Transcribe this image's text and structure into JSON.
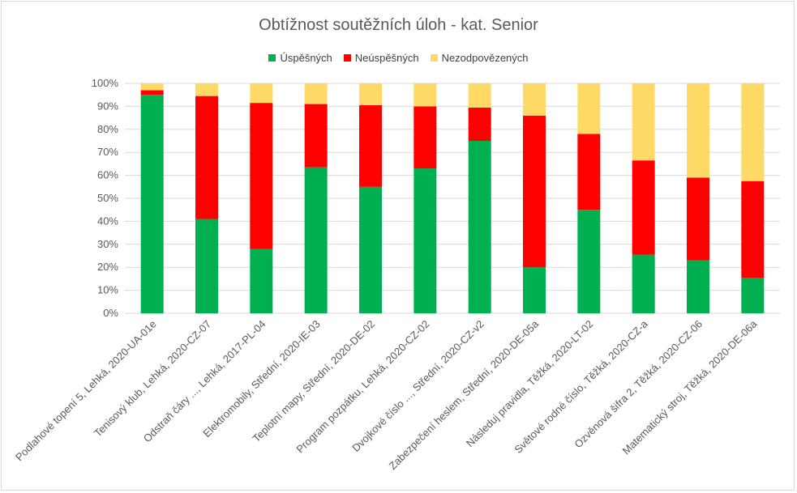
{
  "chart_data": {
    "type": "bar",
    "stacked": true,
    "percent": true,
    "title": "Obtížnost soutěžních úloh - kat. Senior",
    "ylim": [
      0,
      100
    ],
    "yticks": [
      "0%",
      "10%",
      "20%",
      "30%",
      "40%",
      "50%",
      "60%",
      "70%",
      "80%",
      "90%",
      "100%"
    ],
    "grid": true,
    "legend_position": "top",
    "categories": [
      "Podlahové topení 5, Lehká, 2020-UA-01e",
      "Tenisový klub, Lehká, 2020-CZ-07",
      "Odstraň čáry ..., Lehká, 2017-PL-04",
      "Elektromobily, Střední, 2020-IE-03",
      "Teplotní mapy, Střední, 2020-DE-02",
      "Program pozpátku, Lehká, 2020-CZ-02",
      "Dvojkové číslo ..., Střední, 2020-CZ-v2",
      "Zabezpečení heslem, Střední, 2020-DE-05a",
      "Následuj pravidla, Těžká, 2020-LT-02",
      "Světové rodné číslo, Těžká, 2020-CZ-a",
      "Ozvěnová šifra 2, Těžká, 2020-CZ-06",
      "Matematický stroj, Těžká, 2020-DE-06a"
    ],
    "series": [
      {
        "name": "Úspěšných",
        "color": "#00b050",
        "values": [
          95,
          41,
          28,
          63.5,
          55,
          63,
          75,
          20,
          45,
          25.5,
          23,
          15.5
        ]
      },
      {
        "name": "Neúspěšných",
        "color": "#ff0000",
        "values": [
          2,
          53.5,
          63.5,
          27.5,
          35.5,
          27,
          14.5,
          66,
          33,
          41,
          36,
          42
        ]
      },
      {
        "name": "Nezodpovězených",
        "color": "#ffd966",
        "values": [
          3,
          5.5,
          8.5,
          9,
          9.5,
          10,
          10.5,
          14,
          22,
          33.5,
          41,
          42.5
        ]
      }
    ]
  }
}
